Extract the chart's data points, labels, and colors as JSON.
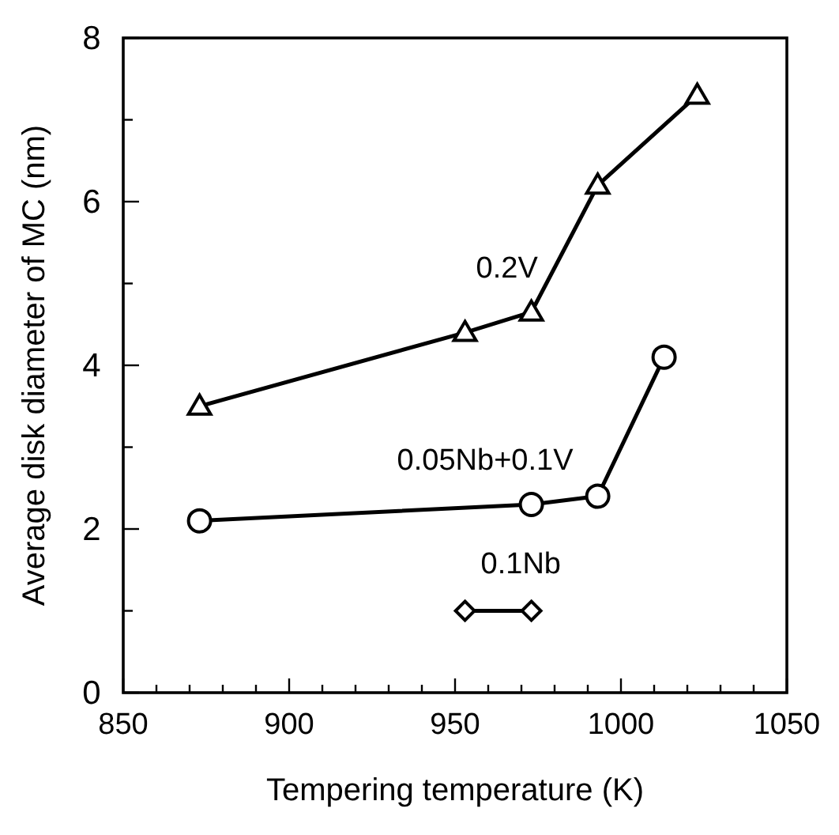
{
  "chart_data": {
    "type": "line",
    "xlabel": "Tempering temperature (K)",
    "ylabel": "Average disk diameter of MC (nm)",
    "xlim": [
      850,
      1050
    ],
    "ylim": [
      0,
      8
    ],
    "xticks": [
      850,
      {
        "value": 860,
        "label": null
      },
      {
        "value": 870,
        "label": null
      },
      {
        "value": 880,
        "label": null
      },
      {
        "value": 890,
        "label": null
      },
      900,
      {
        "value": 910,
        "label": null
      },
      {
        "value": 920,
        "label": null
      },
      {
        "value": 930,
        "label": null
      },
      {
        "value": 940,
        "label": null
      },
      950,
      {
        "value": 960,
        "label": null
      },
      {
        "value": 970,
        "label": null
      },
      {
        "value": 980,
        "label": null
      },
      {
        "value": 990,
        "label": null
      },
      1000,
      {
        "value": 1010,
        "label": null
      },
      {
        "value": 1020,
        "label": null
      },
      {
        "value": 1030,
        "label": null
      },
      {
        "value": 1040,
        "label": null
      },
      1050
    ],
    "yticks": [
      0,
      {
        "value": 1,
        "label": null
      },
      2,
      {
        "value": 3,
        "label": null
      },
      4,
      {
        "value": 5,
        "label": null
      },
      6,
      {
        "value": 7,
        "label": null
      },
      8
    ],
    "grid": false,
    "series": [
      {
        "name": "0.2V",
        "color": "#000000",
        "marker": "triangle",
        "x": [
          873,
          953,
          973,
          993,
          1023
        ],
        "values": [
          3.5,
          4.4,
          4.65,
          6.2,
          7.3
        ]
      },
      {
        "name": "0.05Nb+0.1V",
        "color": "#000000",
        "marker": "circle",
        "x": [
          873,
          973,
          993,
          1013
        ],
        "values": [
          2.1,
          2.3,
          2.4,
          4.1
        ]
      },
      {
        "name": "0.1Nb",
        "color": "#000000",
        "marker": "diamond",
        "x": [
          953,
          973
        ],
        "values": [
          1.0,
          1.0
        ]
      }
    ]
  }
}
